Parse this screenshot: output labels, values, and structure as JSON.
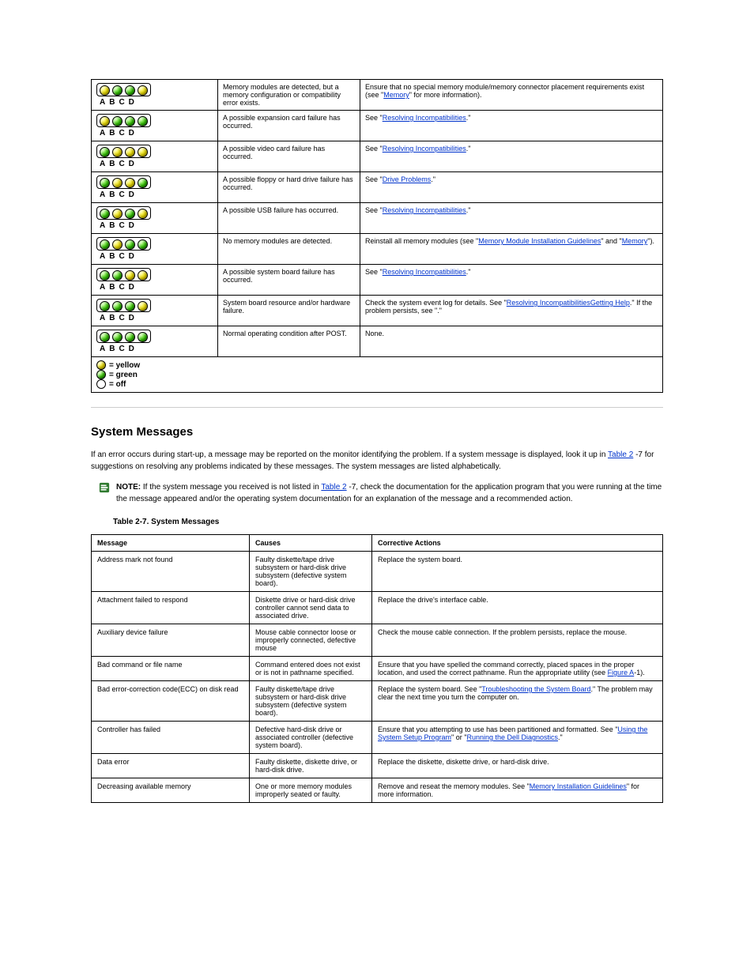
{
  "diag_table": {
    "rows": [
      {
        "leds": [
          "y",
          "g",
          "g",
          "y"
        ],
        "cause": "Memory modules are detected, but a memory configuration or compatibility error exists.",
        "action_pre": "Ensure that no special memory module/memory connector placement requirements exist (see \"",
        "action_link": "Memory",
        "action_post": "\" for more information)."
      },
      {
        "leds": [
          "y",
          "g",
          "g",
          "g"
        ],
        "cause": "A possible expansion card failure has occurred.",
        "action_pre": "See \"",
        "action_link": "Resolving Incompatibilities",
        "action_post": ".\""
      },
      {
        "leds": [
          "g",
          "y",
          "y",
          "y"
        ],
        "cause": "A possible video card failure has occurred.",
        "action_pre": "See \"",
        "action_link": "Resolving Incompatibilities",
        "action_post": ".\""
      },
      {
        "leds": [
          "g",
          "y",
          "y",
          "g"
        ],
        "cause": "A possible floppy or hard drive failure has occurred.",
        "action_pre": "See \"",
        "action_link": "Drive Problems",
        "action_post": ".\""
      },
      {
        "leds": [
          "g",
          "y",
          "g",
          "y"
        ],
        "cause": "A possible USB failure has occurred.",
        "action_pre": "See \"",
        "action_link": "Resolving Incompatibilities",
        "action_post": ".\""
      },
      {
        "leds": [
          "g",
          "y",
          "g",
          "g"
        ],
        "cause": "No memory modules are detected.",
        "action_pre": "Reinstall all memory modules (see \"",
        "action_link": "Memory Module Installation Guidelines",
        "action_link2": "Memory",
        "action_mid": "\" and \"",
        "action_post": "\")."
      },
      {
        "leds": [
          "g",
          "g",
          "y",
          "y"
        ],
        "cause": "A possible system board failure has occurred.",
        "action_pre": "See \"",
        "action_link": "Resolving Incompatibilities",
        "action_post": ".\""
      },
      {
        "leds": [
          "g",
          "g",
          "g",
          "y"
        ],
        "cause": "System board resource and/or hardware failure.",
        "action_pre": "Check the system event log for details. See \"",
        "action_link": "Resolving Incompatibilities",
        "action_post": ".\" If the problem persists, see \"",
        "action_link2": "Getting Help",
        "action_post2": ".\""
      },
      {
        "leds": [
          "g",
          "g",
          "g",
          "g"
        ],
        "cause": "Normal operating condition after POST.",
        "action_pre": "None.",
        "action_link": "",
        "action_post": ""
      }
    ],
    "legend": [
      {
        "cls": "y",
        "label": " = yellow"
      },
      {
        "cls": "g",
        "label": " = green"
      },
      {
        "cls": "o",
        "label": " = off"
      }
    ]
  },
  "section": {
    "title": "System Messages",
    "p1_pre": "If an error occurs during start-up, a message may be reported on the monitor identifying the problem. If a system message is displayed, look it up in ",
    "p1_link": "Table 2",
    "p1_post": "-7 for suggestions on resolving any problems indicated by these messages. The system messages are listed alphabetically.",
    "note_pre": "If the system message you received is not listed in ",
    "note_link": "Table 2",
    "note_label": "NOTE: ",
    "note_post": "-7, check the documentation for the application program that you were running at the time the message appeared and/or the operating system documentation for an explanation of the message and a recommended action.",
    "table_label": "Table 2-7. System Messages"
  },
  "msg_table": {
    "headers": [
      "Message",
      "Causes",
      "Corrective Actions"
    ],
    "rows": [
      {
        "msg": "Address mark not found",
        "cause": "Faulty diskette/tape drive subsystem or hard-disk drive subsystem (defective system board).",
        "act": "Replace the system board."
      },
      {
        "msg": "Attachment failed to respond",
        "cause": "Diskette drive or hard-disk drive controller cannot send data to associated drive.",
        "act": "Replace the drive's interface cable."
      },
      {
        "msg": "Auxiliary device failure",
        "cause": "Mouse cable connector loose or improperly connected, defective mouse",
        "act": "Check the mouse cable connection. If the problem persists, replace the mouse."
      },
      {
        "msg": "Bad command or file name",
        "cause": "Command entered does not exist or is not in pathname specified.",
        "act": "Ensure that you have spelled the command correctly, placed spaces in the proper location, and used the correct pathname. Run the appropriate utility (see ",
        "act_link": "Figure A",
        "act_post": "-1)."
      },
      {
        "msg": "Bad error-correction code(ECC) on disk read",
        "cause": "Faulty diskette/tape drive subsystem or hard-disk drive subsystem (defective system board).",
        "act_pre": "Replace the system board. See \"",
        "act_link": "Troubleshooting the System Board",
        "act_post": ".\" The problem may clear the next time you turn the computer on."
      },
      {
        "msg": "Controller has failed",
        "cause": "Defective hard-disk drive or associated controller (defective system board).",
        "act_pre": "Ensure that you attempting to use has been partitioned and formatted. See \"",
        "act_link": "Using the System Setup Program",
        "act_link2": "Running the Dell Diagnostics",
        "act_mid": "\" or \"",
        "act_post": ".\""
      },
      {
        "msg": "Data error",
        "cause": "Faulty diskette, diskette drive, or hard-disk drive.",
        "act": "Replace the diskette, diskette drive, or hard-disk drive."
      },
      {
        "msg": "Decreasing available memory",
        "cause": "One or more memory modules improperly seated or faulty.",
        "act_pre": "Remove and reseat the memory modules. See \"",
        "act_link": "Memory Installation Guidelines",
        "act_post": "\" for more information."
      }
    ]
  }
}
